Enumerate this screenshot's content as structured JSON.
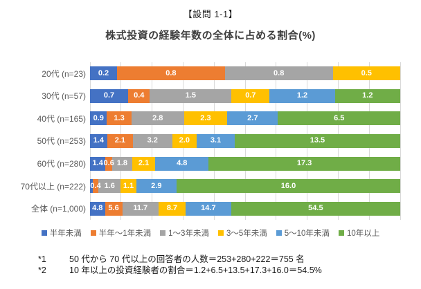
{
  "header": {
    "survey_label": "【設問 1-1】"
  },
  "chart_data": {
    "type": "bar",
    "subtype": "horizontal-100-percent-stacked",
    "title": "株式投資の経験年数の全体に占める割合(%)",
    "x_axis": {
      "min": 0,
      "max": 100,
      "gridline_step_percent": 10,
      "tick_labels_shown": false,
      "grid": true
    },
    "legend_position": "bottom",
    "series_names": [
      "半年未満",
      "半年～1年未満",
      "1～3年未満",
      "3～5年未満",
      "5～10年未満",
      "10年以上"
    ],
    "series_colors": [
      "#4472C4",
      "#ED7D31",
      "#A5A5A5",
      "#FFC000",
      "#5B9BD5",
      "#70AD47"
    ],
    "data_label_note": "labels are share of all 1,000 respondents (%); segment widths are share within each age group",
    "rows": [
      {
        "category": "20代 (n=23)",
        "values": [
          0.2,
          0.8,
          0.8,
          0.5,
          0,
          0
        ],
        "labels": [
          "0.2",
          "0.8",
          "0.8",
          "0.5",
          "",
          ""
        ]
      },
      {
        "category": "30代 (n=57)",
        "values": [
          0.7,
          0.4,
          1.5,
          0.7,
          1.2,
          1.2
        ],
        "labels": [
          "0.7",
          "0.4",
          "1.5",
          "0.7",
          "1.2",
          "1.2"
        ]
      },
      {
        "category": "40代 (n=165)",
        "values": [
          0.9,
          1.3,
          2.8,
          2.3,
          2.7,
          6.5
        ],
        "labels": [
          "0.9",
          "1.3",
          "2.8",
          "2.3",
          "2.7",
          "6.5"
        ]
      },
      {
        "category": "50代 (n=253)",
        "values": [
          1.4,
          2.1,
          3.2,
          2.0,
          3.1,
          13.5
        ],
        "labels": [
          "1.4",
          "2.1",
          "3.2",
          "2.0",
          "3.1",
          "13.5"
        ]
      },
      {
        "category": "60代 (n=280)",
        "values": [
          1.4,
          0.6,
          1.8,
          2.1,
          4.8,
          17.3
        ],
        "labels": [
          "1.4",
          "0.6",
          "1.8",
          "2.1",
          "4.8",
          "17.3"
        ]
      },
      {
        "category": "70代以上 (n=222)",
        "values": [
          0.2,
          0.4,
          1.6,
          1.1,
          2.9,
          16.0
        ],
        "labels": [
          "",
          "0.4",
          "1.6",
          "1.1",
          "2.9",
          "16.0"
        ]
      },
      {
        "category": "全体 (n=1,000)",
        "values": [
          4.8,
          5.6,
          11.7,
          8.7,
          14.7,
          54.5
        ],
        "labels": [
          "4.8",
          "5.6",
          "11.7",
          "8.7",
          "14.7",
          "54.5"
        ]
      }
    ]
  },
  "footnotes": [
    {
      "marker": "*1",
      "text": "50 代から 70 代以上の回答者の人数＝253+280+222＝755 名"
    },
    {
      "marker": "*2",
      "text": "10 年以上の投資経験者の割合＝1.2+6.5+13.5+17.3+16.0＝54.5%"
    }
  ]
}
